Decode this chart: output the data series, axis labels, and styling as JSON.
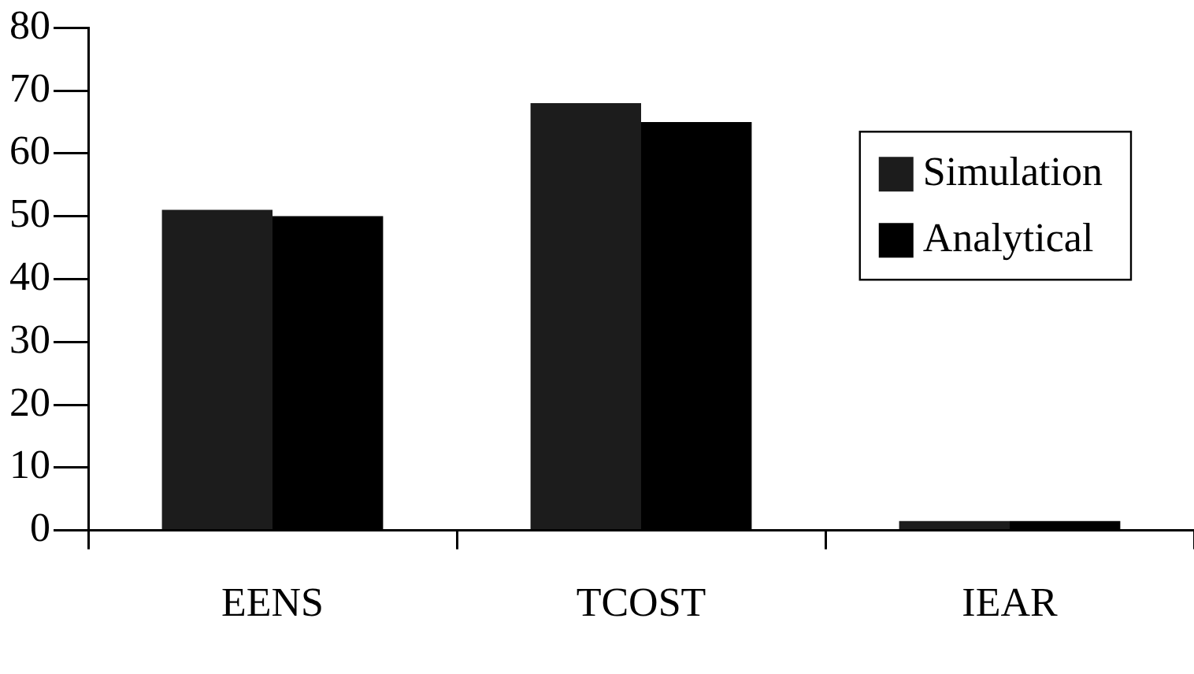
{
  "chart_data": {
    "type": "bar",
    "categories": [
      "EENS",
      "TCOST",
      "IEAR"
    ],
    "series": [
      {
        "name": "Simulation",
        "color": "#1c1c1c",
        "values": [
          51,
          68,
          1.5
        ]
      },
      {
        "name": "Analytical",
        "color": "#000000",
        "values": [
          50,
          65,
          1.5
        ]
      }
    ],
    "ylim": [
      0,
      80
    ],
    "yticks": [
      0,
      10,
      20,
      30,
      40,
      50,
      60,
      70,
      80
    ],
    "grid": false,
    "legend": "top right"
  }
}
